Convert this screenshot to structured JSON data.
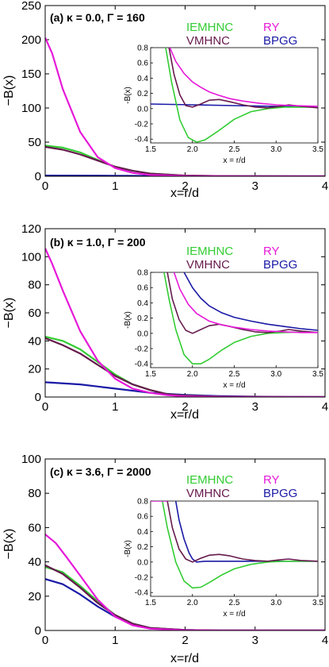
{
  "colors": {
    "IEMHNC": "#33cc33",
    "VMHNC": "#661a4d",
    "RY": "#e619d9",
    "BPGG": "#1a1aa6"
  },
  "chart_data": [
    {
      "type": "line",
      "title": "(a) κ = 0.0, Γ = 160",
      "xlabel": "x=r/d",
      "ylabel": "−B(x)",
      "xlim": [
        0,
        4
      ],
      "ylim": [
        0,
        250
      ],
      "x_ticks": [
        "0",
        "1",
        "2",
        "3",
        "4"
      ],
      "y_ticks": [
        "0",
        "50",
        "100",
        "150",
        "200",
        "250"
      ],
      "legend": [
        "IEMHNC",
        "RY",
        "VMHNC",
        "BPGG"
      ],
      "series": [
        {
          "name": "IEMHNC",
          "x": [
            0,
            0.25,
            0.5,
            0.75,
            1,
            1.25,
            1.5,
            2,
            2.5,
            3,
            4
          ],
          "y": [
            45,
            42,
            35,
            24,
            14,
            8,
            4,
            1,
            0.3,
            0.1,
            0
          ]
        },
        {
          "name": "VMHNC",
          "x": [
            0,
            0.25,
            0.5,
            0.75,
            1,
            1.25,
            1.5,
            2,
            2.5,
            3,
            4
          ],
          "y": [
            43,
            39,
            32,
            23,
            14,
            8,
            4,
            1,
            0.3,
            0.1,
            0
          ]
        },
        {
          "name": "RY",
          "x": [
            0,
            0.1,
            0.25,
            0.5,
            0.75,
            1,
            1.25,
            1.5,
            2,
            2.5,
            3,
            4
          ],
          "y": [
            203,
            180,
            128,
            65,
            28,
            12,
            5,
            2,
            0.5,
            0.1,
            0,
            0
          ]
        },
        {
          "name": "BPGG",
          "x": [
            0,
            1,
            2,
            3,
            4
          ],
          "y": [
            1,
            0.8,
            0.4,
            0.1,
            0
          ]
        }
      ],
      "inset": {
        "xlabel": "x = r/d",
        "ylabel": "-B(x)",
        "xlim": [
          1.5,
          3.5
        ],
        "ylim": [
          -0.45,
          0.8
        ],
        "x_ticks": [
          "1.5",
          "2.0",
          "2.5",
          "3.0",
          "3.5"
        ],
        "y_ticks": [
          "-0.4",
          "-0.2",
          "0.0",
          "0.2",
          "0.4",
          "0.6",
          "0.8"
        ],
        "series": [
          {
            "name": "IEMHNC",
            "x": [
              1.68,
              1.75,
              1.85,
              1.95,
              2.05,
              2.15,
              2.3,
              2.5,
              2.7,
              2.9,
              3.1,
              3.3,
              3.5
            ],
            "y": [
              0.8,
              0.35,
              -0.15,
              -0.38,
              -0.44,
              -0.41,
              -0.3,
              -0.14,
              -0.04,
              0.0,
              0.02,
              0.02,
              0.02
            ]
          },
          {
            "name": "VMHNC",
            "x": [
              1.72,
              1.78,
              1.85,
              1.92,
              2.0,
              2.1,
              2.2,
              2.32,
              2.45,
              2.6,
              2.75,
              2.9,
              3.05,
              3.15,
              3.3,
              3.5
            ],
            "y": [
              0.8,
              0.45,
              0.18,
              0.04,
              0.02,
              0.06,
              0.11,
              0.12,
              0.09,
              0.05,
              0.02,
              0.01,
              0.03,
              0.05,
              0.03,
              0.01
            ]
          },
          {
            "name": "RY",
            "x": [
              1.73,
              1.8,
              1.9,
              2.0,
              2.1,
              2.2,
              2.3,
              2.45,
              2.6,
              2.8,
              3.0,
              3.2,
              3.5
            ],
            "y": [
              0.8,
              0.62,
              0.46,
              0.35,
              0.28,
              0.22,
              0.18,
              0.13,
              0.1,
              0.07,
              0.05,
              0.04,
              0.03
            ]
          },
          {
            "name": "BPGG",
            "x": [
              1.5,
              2.0,
              2.5,
              3.0,
              3.5
            ],
            "y": [
              0.06,
              0.05,
              0.04,
              0.03,
              0.02
            ]
          }
        ]
      }
    },
    {
      "type": "line",
      "title": "(b) κ = 1.0, Γ = 200",
      "xlabel": "x=r/d",
      "ylabel": "−B(x)",
      "xlim": [
        0,
        4
      ],
      "ylim": [
        0,
        120
      ],
      "x_ticks": [
        "0",
        "1",
        "2",
        "3",
        "4"
      ],
      "y_ticks": [
        "0",
        "20",
        "40",
        "60",
        "80",
        "100",
        "120"
      ],
      "legend": [
        "IEMHNC",
        "RY",
        "VMHNC",
        "BPGG"
      ],
      "series": [
        {
          "name": "IEMHNC",
          "x": [
            0,
            0.25,
            0.5,
            0.75,
            1,
            1.25,
            1.5,
            1.75,
            2,
            2.5,
            3,
            4
          ],
          "y": [
            43,
            40,
            34,
            25,
            16,
            9,
            5,
            2,
            1,
            0.3,
            0.1,
            0
          ]
        },
        {
          "name": "VMHNC",
          "x": [
            0,
            0.25,
            0.5,
            0.75,
            1,
            1.25,
            1.5,
            1.75,
            2,
            2.5,
            3,
            4
          ],
          "y": [
            42,
            37,
            31,
            23,
            15,
            9,
            5,
            2,
            1,
            0.3,
            0.1,
            0
          ]
        },
        {
          "name": "RY",
          "x": [
            0,
            0.1,
            0.25,
            0.5,
            0.75,
            1,
            1.25,
            1.5,
            1.75,
            2,
            2.5,
            3,
            4
          ],
          "y": [
            106,
            95,
            76,
            47,
            26,
            13,
            6,
            3,
            1.3,
            0.5,
            0.1,
            0,
            0
          ]
        },
        {
          "name": "BPGG",
          "x": [
            0,
            0.5,
            1,
            1.5,
            2,
            2.5,
            3,
            3.5,
            4
          ],
          "y": [
            10.5,
            9,
            6,
            3,
            1.5,
            0.7,
            0.3,
            0.1,
            0
          ]
        }
      ],
      "inset": {
        "xlabel": "x = r/d",
        "ylabel": "-B(x)",
        "xlim": [
          1.5,
          3.5
        ],
        "ylim": [
          -0.45,
          0.8
        ],
        "x_ticks": [
          "1.5",
          "2.0",
          "2.5",
          "3.0",
          "3.5"
        ],
        "y_ticks": [
          "-0.4",
          "-0.2",
          "0.0",
          "0.2",
          "0.4",
          "0.6",
          "0.8"
        ],
        "series": [
          {
            "name": "IEMHNC",
            "x": [
              1.66,
              1.72,
              1.8,
              1.9,
              2.0,
              2.1,
              2.2,
              2.35,
              2.5,
              2.7,
              2.9,
              3.1,
              3.3,
              3.5
            ],
            "y": [
              0.8,
              0.45,
              0.05,
              -0.28,
              -0.4,
              -0.4,
              -0.34,
              -0.22,
              -0.12,
              -0.04,
              0.0,
              0.01,
              0.02,
              0.01
            ]
          },
          {
            "name": "VMHNC",
            "x": [
              1.7,
              1.76,
              1.84,
              1.92,
              2.0,
              2.1,
              2.2,
              2.32,
              2.45,
              2.6,
              2.75,
              2.9,
              3.05,
              3.15,
              3.3,
              3.5
            ],
            "y": [
              0.8,
              0.45,
              0.18,
              0.04,
              0.0,
              0.05,
              0.1,
              0.12,
              0.09,
              0.05,
              0.02,
              0.01,
              0.03,
              0.05,
              0.03,
              0.01
            ]
          },
          {
            "name": "RY",
            "x": [
              1.78,
              1.85,
              1.95,
              2.05,
              2.2,
              2.35,
              2.5,
              2.7,
              2.9,
              3.1,
              3.3,
              3.5
            ],
            "y": [
              0.8,
              0.58,
              0.38,
              0.26,
              0.16,
              0.11,
              0.08,
              0.05,
              0.03,
              0.02,
              0.01,
              0.01
            ]
          },
          {
            "name": "BPGG",
            "x": [
              1.9,
              2.0,
              2.1,
              2.2,
              2.35,
              2.5,
              2.7,
              2.9,
              3.1,
              3.3,
              3.5
            ],
            "y": [
              0.8,
              0.6,
              0.46,
              0.36,
              0.27,
              0.21,
              0.16,
              0.12,
              0.09,
              0.06,
              0.04
            ]
          }
        ]
      }
    },
    {
      "type": "line",
      "title": "(c) κ = 3.6, Γ = 2000",
      "xlabel": "x=r/d",
      "ylabel": "−B(x)",
      "xlim": [
        0,
        4
      ],
      "ylim": [
        0,
        100
      ],
      "x_ticks": [
        "0",
        "1",
        "2",
        "3",
        "4"
      ],
      "y_ticks": [
        "0",
        "20",
        "40",
        "60",
        "80",
        "100"
      ],
      "legend": [
        "IEMHNC",
        "RY",
        "VMHNC",
        "BPGG"
      ],
      "series": [
        {
          "name": "IEMHNC",
          "x": [
            0,
            0.25,
            0.5,
            0.75,
            1,
            1.25,
            1.5,
            2,
            2.5,
            3,
            4
          ],
          "y": [
            37,
            34,
            26,
            17,
            9,
            4,
            1.5,
            0.3,
            0,
            0,
            0
          ]
        },
        {
          "name": "VMHNC",
          "x": [
            0,
            0.25,
            0.5,
            0.75,
            1,
            1.25,
            1.5,
            2,
            2.5,
            3,
            4
          ],
          "y": [
            38,
            33,
            25,
            16,
            9,
            4,
            1.5,
            0.3,
            0,
            0,
            0
          ]
        },
        {
          "name": "RY",
          "x": [
            0,
            0.15,
            0.3,
            0.5,
            0.75,
            1,
            1.25,
            1.5,
            2,
            2.5,
            3,
            4
          ],
          "y": [
            56,
            51,
            43,
            32,
            18,
            8,
            3,
            1,
            0.2,
            0,
            0,
            0
          ]
        },
        {
          "name": "BPGG",
          "x": [
            0,
            0.25,
            0.5,
            0.75,
            1,
            1.25,
            1.5,
            2,
            2.5,
            3,
            4
          ],
          "y": [
            30,
            27,
            21,
            14,
            8,
            4,
            1.5,
            0.3,
            0,
            0,
            0
          ]
        }
      ],
      "inset": {
        "xlabel": "x = r/d",
        "ylabel": "-B(x)",
        "xlim": [
          1.5,
          3.5
        ],
        "ylim": [
          -0.45,
          0.8
        ],
        "x_ticks": [
          "1.5",
          "2.0",
          "2.5",
          "3.0",
          "3.5"
        ],
        "y_ticks": [
          "-0.4",
          "-0.2",
          "0.0",
          "0.2",
          "0.4",
          "0.6",
          "0.8"
        ],
        "series": [
          {
            "name": "IEMHNC",
            "x": [
              1.64,
              1.7,
              1.8,
              1.9,
              2.0,
              2.1,
              2.2,
              2.35,
              2.5,
              2.7,
              2.9,
              3.1,
              3.3,
              3.5
            ],
            "y": [
              0.8,
              0.45,
              0.0,
              -0.25,
              -0.34,
              -0.33,
              -0.27,
              -0.17,
              -0.09,
              -0.03,
              0.0,
              0.01,
              0.01,
              0.01
            ]
          },
          {
            "name": "VMHNC",
            "x": [
              1.7,
              1.76,
              1.84,
              1.92,
              2.0,
              2.1,
              2.2,
              2.32,
              2.45,
              2.6,
              2.75,
              2.9,
              3.05,
              3.15,
              3.3,
              3.5
            ],
            "y": [
              0.8,
              0.45,
              0.17,
              0.04,
              0.0,
              0.05,
              0.09,
              0.1,
              0.08,
              0.04,
              0.02,
              0.01,
              0.03,
              0.04,
              0.02,
              0.01
            ]
          },
          {
            "name": "RY",
            "x": [
              1.5,
              1.7
            ],
            "y": [
              0.8,
              0.8
            ]
          },
          {
            "name": "BPGG",
            "x": [
              1.8,
              1.84,
              1.9,
              1.96,
              2.0,
              2.05,
              2.15,
              2.3,
              2.5,
              2.7,
              2.9,
              3.1,
              3.3,
              3.5
            ],
            "y": [
              0.8,
              0.55,
              0.3,
              0.12,
              0.04,
              0.0,
              0.01,
              0.01,
              0.01,
              0.01,
              0.01,
              0.01,
              0.01,
              0.01
            ]
          }
        ]
      }
    }
  ]
}
